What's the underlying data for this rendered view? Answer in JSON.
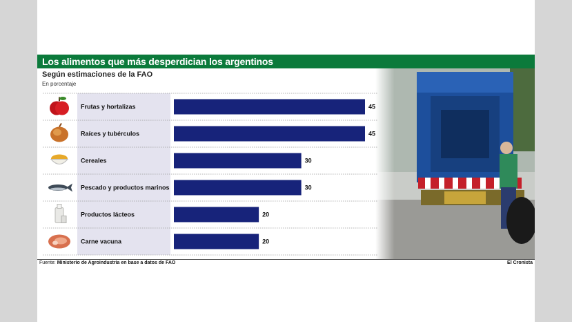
{
  "title": "Los alimentos que más desperdician los argentinos",
  "subtitle": "Según estimaciones de la FAO",
  "unit": "En porcentaje",
  "source_prefix": "Fuente:",
  "source_text": "Ministerio de Agroindustria en base a datos de FAO",
  "brand": "El Cronista",
  "colors": {
    "bar": "#17237a",
    "title_bg": "#0b7a3b",
    "label_bg": "#e4e3ef"
  },
  "chart_data": {
    "type": "bar",
    "orientation": "horizontal",
    "title": "Los alimentos que más desperdician los argentinos",
    "subtitle": "Según estimaciones de la FAO",
    "unit": "En porcentaje",
    "categories": [
      "Frutas y hortalizas",
      "Raíces y tubérculos",
      "Cereales",
      "Pescado y productos marinos",
      "Productos lácteos",
      "Carne vacuna"
    ],
    "icons": [
      "apple-icon",
      "onion-icon",
      "cereal-icon",
      "fish-icon",
      "milk-icon",
      "meat-icon"
    ],
    "values": [
      45,
      45,
      30,
      30,
      20,
      20
    ],
    "xlim": [
      0,
      45
    ],
    "grid": false
  }
}
